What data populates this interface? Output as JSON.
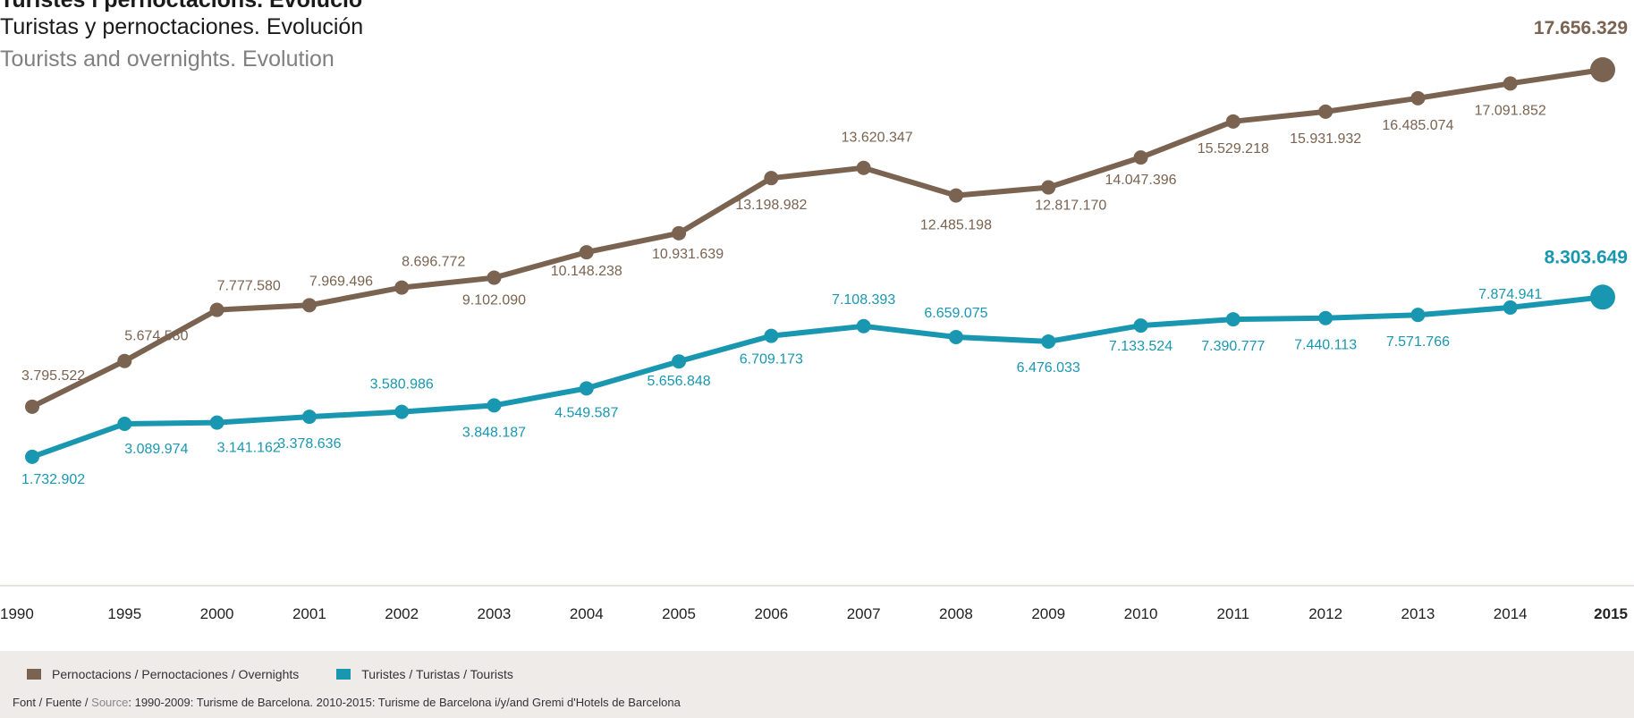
{
  "titles": {
    "catalan": "Turistes i pernoctacions. Evolució",
    "spanish": "Turistas y pernoctaciones. Evolución",
    "english": "Tourists and overnights. Evolution"
  },
  "colors": {
    "overnights": "#7a6350",
    "tourists": "#1a97b0",
    "axis_text": "#222222",
    "baseline": "#e6e2de",
    "footer_bg": "#eeebe8"
  },
  "chart_data": {
    "type": "line",
    "categories": [
      "1990",
      "1995",
      "2000",
      "2001",
      "2002",
      "2003",
      "2004",
      "2005",
      "2006",
      "2007",
      "2008",
      "2009",
      "2010",
      "2011",
      "2012",
      "2013",
      "2014",
      "2015"
    ],
    "ylim": [
      0,
      18000000
    ],
    "grid": false,
    "legend_position": "bottom",
    "series": [
      {
        "name": "Pernoctacions / Pernoctaciones / Overnights",
        "color": "#7a6350",
        "values": [
          3795522,
          5674580,
          7777580,
          7969496,
          8696772,
          9102090,
          10148238,
          10931639,
          13198982,
          13620347,
          12485198,
          12817170,
          14047396,
          15529218,
          15931932,
          16485074,
          17091852,
          17656329
        ],
        "labels": [
          "3.795.522",
          "5.674.580",
          "7.777.580",
          "7.969.496",
          "8.696.772",
          "9.102.090",
          "10.148.238",
          "10.931.639",
          "13.198.982",
          "13.620.347",
          "12.485.198",
          "12.817.170",
          "14.047.396",
          "15.529.218",
          "15.931.932",
          "16.485.074",
          "17.091.852",
          "17.656.329"
        ]
      },
      {
        "name": "Turistes / Turistas / Tourists",
        "color": "#1a97b0",
        "values": [
          1732902,
          3089974,
          3141162,
          3378636,
          3580986,
          3848187,
          4549587,
          5656848,
          6709173,
          7108393,
          6659075,
          6476033,
          7133524,
          7390777,
          7440113,
          7571766,
          7874941,
          8303649
        ],
        "labels": [
          "1.732.902",
          "3.089.974",
          "3.141.162",
          "3.378.636",
          "3.580.986",
          "3.848.187",
          "4.549.587",
          "5.656.848",
          "6.709.173",
          "7.108.393",
          "6.659.075",
          "6.476.033",
          "7.133.524",
          "7.390.777",
          "7.440.113",
          "7.571.766",
          "7.874.941",
          "8.303.649"
        ]
      }
    ]
  },
  "legend": {
    "overnights": "Pernoctacions / Pernoctaciones / Overnights",
    "tourists": "Turistes / Turistas / Tourists"
  },
  "source": {
    "label_prefix": "Font / Fuente / ",
    "label_source": "Source",
    "text": ": 1990-2009: Turisme de Barcelona. 2010-2015: Turisme de Barcelona i/y/and Gremi d'Hotels de Barcelona"
  }
}
